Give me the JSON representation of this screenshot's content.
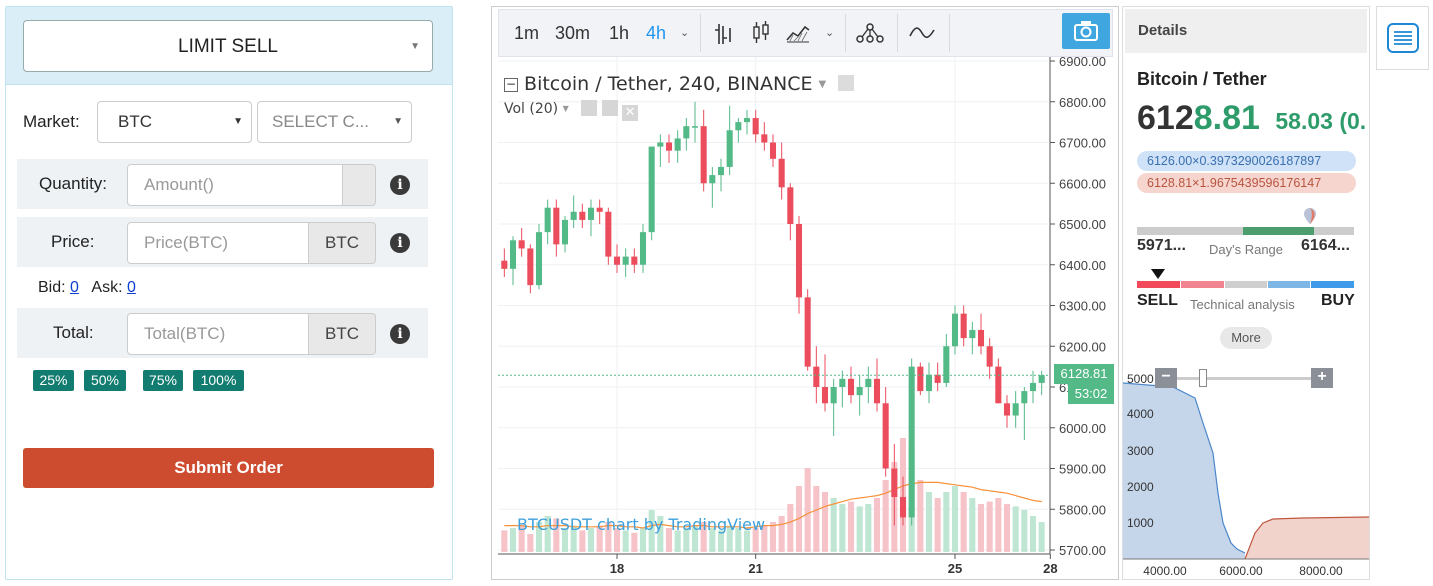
{
  "order": {
    "type": "LIMIT SELL",
    "market_label": "Market:",
    "market_value": "BTC",
    "coin_placeholder": "SELECT C...",
    "quantity_label": "Quantity:",
    "quantity_placeholder": "Amount()",
    "price_label": "Price:",
    "price_placeholder": "Price(BTC)",
    "price_unit": "BTC",
    "bid_label": "Bid:",
    "bid_value": "0",
    "ask_label": "Ask:",
    "ask_value": "0",
    "total_label": "Total:",
    "total_placeholder": "Total(BTC)",
    "total_unit": "BTC",
    "percents": [
      "25%",
      "50%",
      "75%",
      "100%"
    ],
    "submit": "Submit Order"
  },
  "toolbar": {
    "intervals": [
      "1m",
      "30m",
      "1h",
      "4h"
    ],
    "active_interval": "4h"
  },
  "chart": {
    "symbol_title": "Bitcoin / Tether, 240, BINANCE",
    "volume_label": "Vol (20)",
    "watermark": "BTCUSDT chart by TradingView",
    "current_price": "6128.81",
    "countdown": "53:02",
    "colors": {
      "up": "#53b987",
      "down": "#eb4d5c",
      "ma": "#f7923a"
    }
  },
  "chart_data": {
    "type": "candlestick",
    "title": "Bitcoin / Tether, 240, BINANCE",
    "y_ticks": [
      6900,
      6800,
      6700,
      6600,
      6500,
      6400,
      6300,
      6200,
      6100,
      6000,
      5900,
      5800,
      5700
    ],
    "y_tick_labels": [
      "6900.00",
      "6800.00",
      "6700.00",
      "6600.00",
      "6500.00",
      "6400.00",
      "6300.00",
      "6200.00",
      "6100.00",
      "6000.00",
      "5900.00",
      "5800.00",
      "5700.00"
    ],
    "x_ticks": [
      "18",
      "21",
      "25",
      "28"
    ],
    "last_price": 6128.81,
    "candles": [
      [
        6410,
        6440,
        6370,
        6390
      ],
      [
        6390,
        6470,
        6350,
        6460
      ],
      [
        6460,
        6490,
        6420,
        6440
      ],
      [
        6440,
        6450,
        6330,
        6350
      ],
      [
        6350,
        6500,
        6340,
        6480
      ],
      [
        6480,
        6560,
        6450,
        6540
      ],
      [
        6540,
        6560,
        6420,
        6450
      ],
      [
        6450,
        6520,
        6430,
        6510
      ],
      [
        6510,
        6570,
        6490,
        6530
      ],
      [
        6530,
        6550,
        6490,
        6510
      ],
      [
        6510,
        6560,
        6470,
        6540
      ],
      [
        6540,
        6560,
        6500,
        6530
      ],
      [
        6530,
        6540,
        6400,
        6420
      ],
      [
        6420,
        6450,
        6380,
        6400
      ],
      [
        6400,
        6440,
        6370,
        6420
      ],
      [
        6420,
        6440,
        6380,
        6400
      ],
      [
        6400,
        6500,
        6380,
        6480
      ],
      [
        6480,
        6680,
        6460,
        6690
      ],
      [
        6690,
        6720,
        6640,
        6700
      ],
      [
        6700,
        6720,
        6650,
        6680
      ],
      [
        6680,
        6730,
        6650,
        6710
      ],
      [
        6710,
        6760,
        6680,
        6740
      ],
      [
        6740,
        6800,
        6700,
        6740
      ],
      [
        6740,
        6780,
        6580,
        6600
      ],
      [
        6600,
        6640,
        6540,
        6620
      ],
      [
        6620,
        6660,
        6580,
        6640
      ],
      [
        6640,
        6790,
        6620,
        6730
      ],
      [
        6730,
        6760,
        6700,
        6750
      ],
      [
        6750,
        6780,
        6720,
        6760
      ],
      [
        6760,
        6780,
        6700,
        6720
      ],
      [
        6720,
        6750,
        6680,
        6700
      ],
      [
        6700,
        6720,
        6640,
        6660
      ],
      [
        6660,
        6700,
        6560,
        6590
      ],
      [
        6590,
        6600,
        6460,
        6500
      ],
      [
        6500,
        6520,
        6280,
        6320
      ],
      [
        6320,
        6340,
        6140,
        6150
      ],
      [
        6150,
        6200,
        6060,
        6100
      ],
      [
        6100,
        6180,
        6040,
        6060
      ],
      [
        6060,
        6120,
        5980,
        6100
      ],
      [
        6100,
        6140,
        6050,
        6120
      ],
      [
        6120,
        6150,
        6060,
        6080
      ],
      [
        6080,
        6130,
        6030,
        6100
      ],
      [
        6100,
        6150,
        6060,
        6120
      ],
      [
        6120,
        6170,
        6040,
        6060
      ],
      [
        6060,
        6100,
        5880,
        5900
      ],
      [
        5900,
        5960,
        5760,
        5830
      ],
      [
        5830,
        5880,
        5760,
        5780
      ],
      [
        5780,
        6170,
        5760,
        6150
      ],
      [
        6150,
        6160,
        6080,
        6090
      ],
      [
        6090,
        6160,
        6060,
        6130
      ],
      [
        6130,
        6160,
        6090,
        6110
      ],
      [
        6110,
        6230,
        6100,
        6200
      ],
      [
        6200,
        6300,
        6180,
        6280
      ],
      [
        6280,
        6300,
        6200,
        6220
      ],
      [
        6220,
        6260,
        6180,
        6240
      ],
      [
        6240,
        6280,
        6180,
        6200
      ],
      [
        6200,
        6220,
        6120,
        6150
      ],
      [
        6150,
        6170,
        6060,
        6060
      ],
      [
        6060,
        6080,
        6000,
        6030
      ],
      [
        6030,
        6090,
        6000,
        6060
      ],
      [
        6060,
        6100,
        5970,
        6090
      ],
      [
        6090,
        6140,
        6060,
        6110
      ],
      [
        6110,
        6140,
        6080,
        6129
      ]
    ],
    "volumes": [
      0.18,
      0.2,
      0.22,
      0.15,
      0.25,
      0.3,
      0.28,
      0.2,
      0.22,
      0.18,
      0.2,
      0.22,
      0.25,
      0.2,
      0.18,
      0.16,
      0.2,
      0.35,
      0.3,
      0.2,
      0.18,
      0.2,
      0.22,
      0.25,
      0.2,
      0.18,
      0.22,
      0.2,
      0.18,
      0.2,
      0.22,
      0.25,
      0.3,
      0.4,
      0.55,
      0.7,
      0.55,
      0.5,
      0.45,
      0.4,
      0.42,
      0.38,
      0.4,
      0.45,
      0.6,
      0.75,
      0.95,
      0.85,
      0.6,
      0.5,
      0.45,
      0.5,
      0.55,
      0.5,
      0.45,
      0.4,
      0.42,
      0.45,
      0.4,
      0.38,
      0.35,
      0.3,
      0.25
    ],
    "volume_ma": [
      0.22,
      0.22,
      0.22,
      0.21,
      0.21,
      0.22,
      0.22,
      0.22,
      0.21,
      0.21,
      0.21,
      0.21,
      0.22,
      0.22,
      0.21,
      0.21,
      0.2,
      0.22,
      0.23,
      0.22,
      0.21,
      0.21,
      0.22,
      0.22,
      0.21,
      0.21,
      0.21,
      0.21,
      0.2,
      0.21,
      0.22,
      0.22,
      0.23,
      0.25,
      0.28,
      0.32,
      0.35,
      0.38,
      0.4,
      0.42,
      0.44,
      0.45,
      0.46,
      0.47,
      0.49,
      0.52,
      0.55,
      0.57,
      0.58,
      0.58,
      0.58,
      0.57,
      0.56,
      0.55,
      0.54,
      0.52,
      0.51,
      0.5,
      0.49,
      0.47,
      0.45,
      0.43,
      0.42
    ]
  },
  "details": {
    "header": "Details",
    "pair": "Bitcoin / Tether",
    "price_a": "612",
    "price_b": "8.81",
    "change": "58.03 (0.",
    "bid_chip": "6126.00×0.3973290026187897",
    "ask_chip": "6128.81×1.9675439596176147",
    "range_low": "5971...",
    "range_label": "Day's Range",
    "range_high": "6164...",
    "sell": "SELL",
    "ta_label": "Technical analysis",
    "buy": "BUY",
    "more": "More"
  },
  "depth_chart": {
    "type": "area",
    "y_ticks": [
      "5000",
      "4000",
      "3000",
      "2000",
      "1000"
    ],
    "x_ticks": [
      "4000.00",
      "6000.00",
      "8000.00"
    ],
    "colors": {
      "bids": "#c5d6ea",
      "asks": "#f2d3cc"
    }
  }
}
